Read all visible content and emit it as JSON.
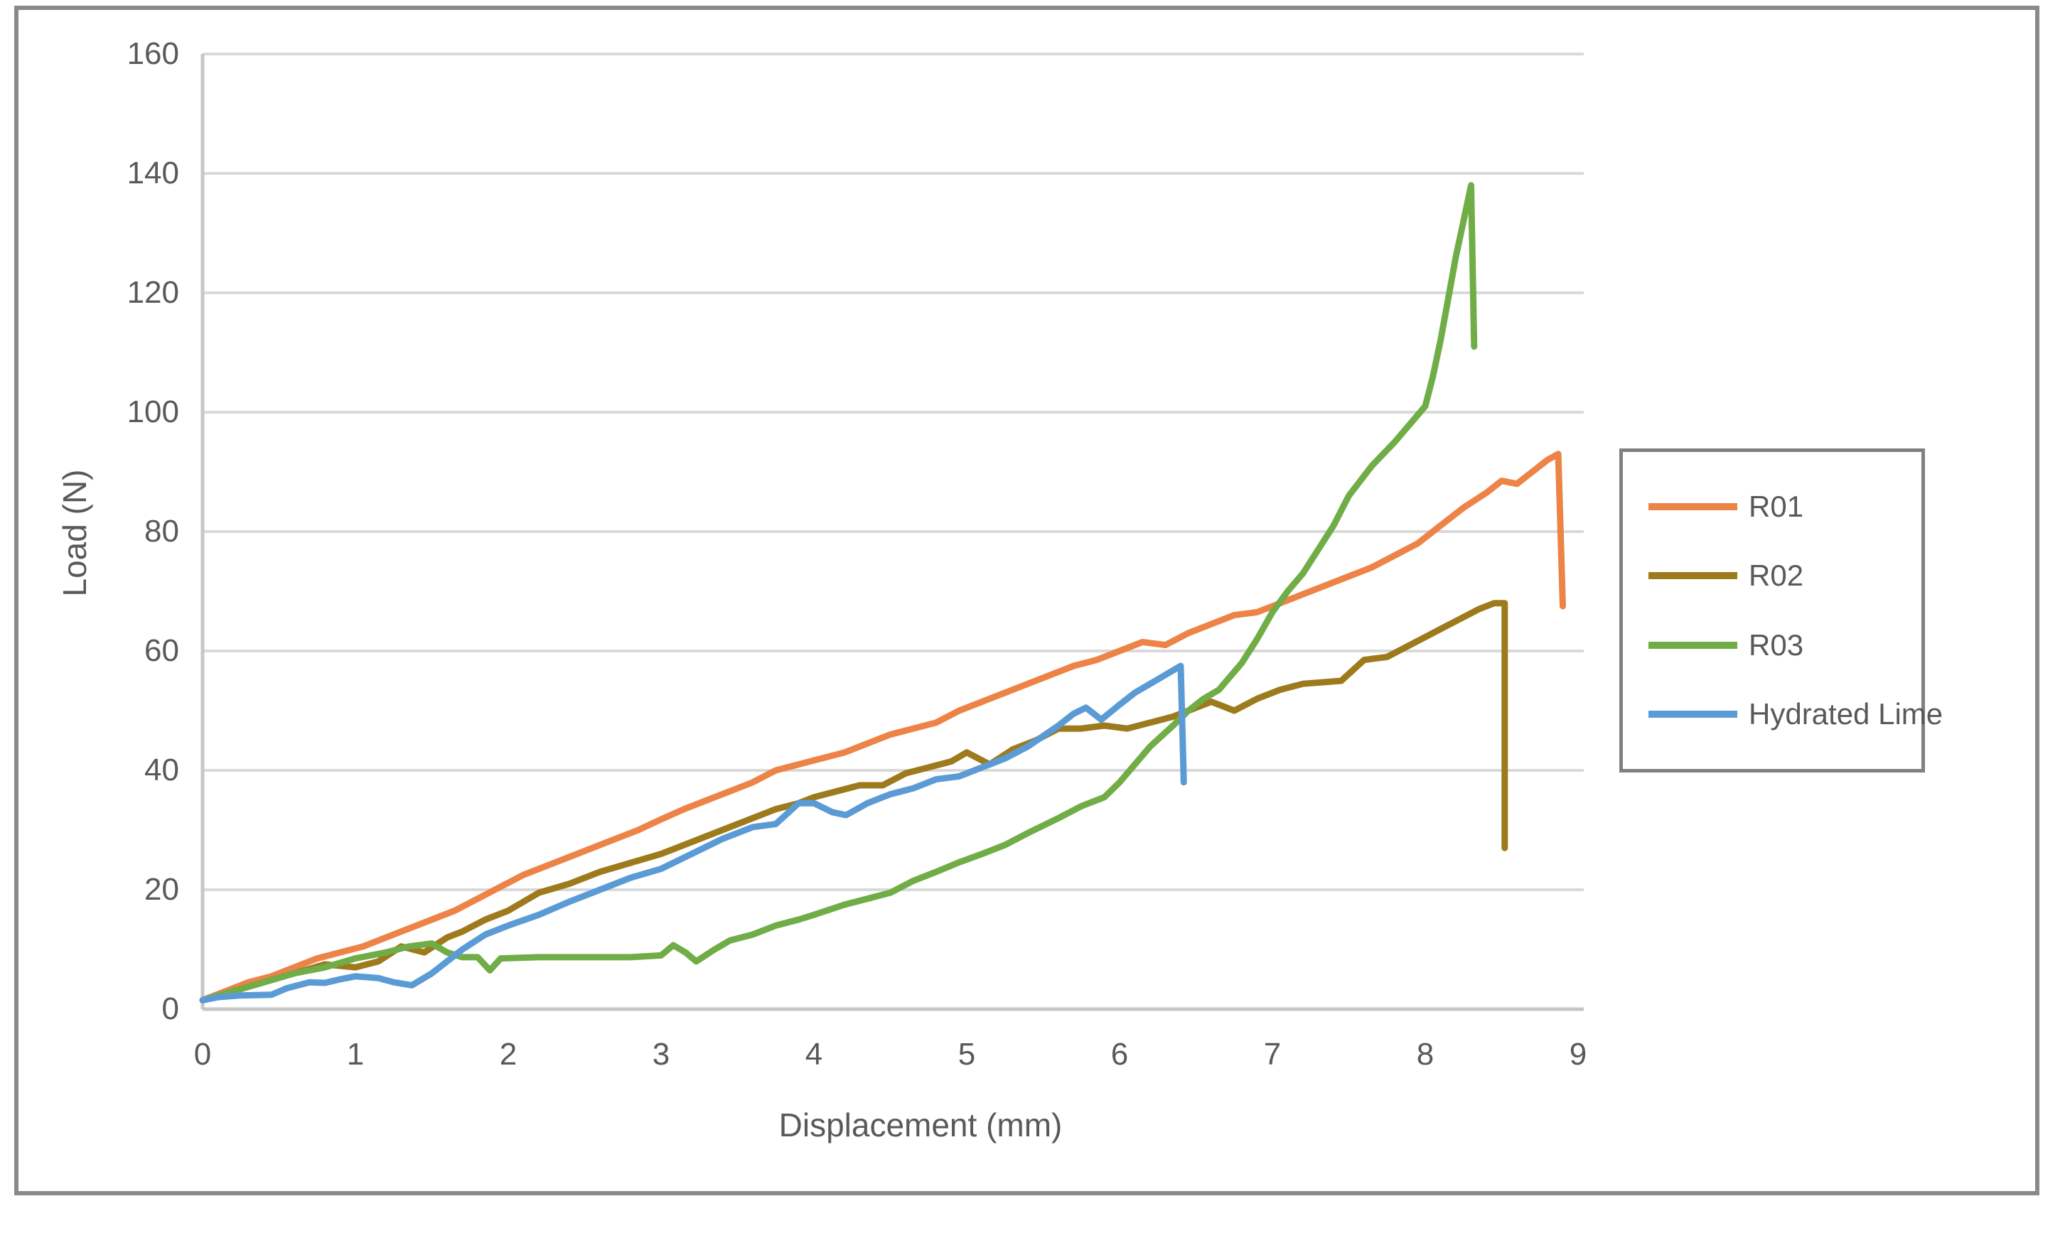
{
  "figure": {
    "border_color": "#8a8a8a",
    "background": "#ffffff",
    "text_color": "#595959",
    "gridline_color": "#d9d9d9",
    "axisline_color": "#c6c6c6"
  },
  "chart_data": {
    "type": "line",
    "title": "",
    "xlabel": "Displacement (mm)",
    "ylabel": "Load (N)",
    "xlim": [
      0,
      9
    ],
    "ylim": [
      0,
      160
    ],
    "xticks": [
      "0",
      "1",
      "2",
      "3",
      "4",
      "5",
      "6",
      "7",
      "8",
      "9"
    ],
    "yticks": [
      "0",
      "20",
      "40",
      "60",
      "80",
      "100",
      "120",
      "140",
      "160"
    ],
    "grid": "horizontal",
    "legend_position": "right-outside",
    "legend_border_color": "#808080",
    "series": [
      {
        "name": "R01",
        "color": "#ED8347",
        "x": [
          0,
          0.15,
          0.3,
          0.45,
          0.6,
          0.75,
          0.9,
          1.05,
          1.2,
          1.35,
          1.5,
          1.65,
          1.8,
          1.95,
          2.1,
          2.25,
          2.4,
          2.55,
          2.7,
          2.85,
          3.0,
          3.15,
          3.3,
          3.45,
          3.6,
          3.75,
          3.9,
          4.05,
          4.2,
          4.35,
          4.5,
          4.65,
          4.8,
          4.95,
          5.1,
          5.25,
          5.4,
          5.55,
          5.7,
          5.85,
          6.0,
          6.15,
          6.3,
          6.45,
          6.6,
          6.75,
          6.9,
          7.05,
          7.2,
          7.35,
          7.5,
          7.65,
          7.8,
          7.95,
          8.1,
          8.25,
          8.4,
          8.5,
          8.6,
          8.7,
          8.8,
          8.87,
          8.9
        ],
        "y": [
          1.5,
          3,
          4.5,
          5.5,
          7,
          8.5,
          9.5,
          10.5,
          12,
          13.5,
          15,
          16.5,
          18.5,
          20.5,
          22.5,
          24,
          25.5,
          27,
          28.5,
          30,
          31.8,
          33.5,
          35,
          36.5,
          38,
          40,
          41,
          42,
          43,
          44.5,
          46,
          47,
          48,
          50,
          51.5,
          53,
          54.5,
          56,
          57.5,
          58.5,
          60,
          61.5,
          61,
          63,
          64.5,
          66,
          66.5,
          68,
          69.5,
          71,
          72.5,
          74,
          76,
          78,
          81,
          84,
          86.5,
          88.5,
          88,
          90,
          92,
          93,
          67.5
        ]
      },
      {
        "name": "R02",
        "color": "#9D7A1C",
        "x": [
          0,
          0.2,
          0.4,
          0.6,
          0.8,
          1.0,
          1.15,
          1.3,
          1.45,
          1.6,
          1.7,
          1.85,
          2.0,
          2.2,
          2.4,
          2.6,
          2.8,
          3.0,
          3.2,
          3.4,
          3.6,
          3.75,
          3.9,
          4.0,
          4.15,
          4.3,
          4.45,
          4.6,
          4.75,
          4.9,
          5.0,
          5.15,
          5.3,
          5.45,
          5.6,
          5.75,
          5.9,
          6.05,
          6.2,
          6.35,
          6.45,
          6.6,
          6.75,
          6.9,
          7.05,
          7.2,
          7.45,
          7.6,
          7.75,
          7.9,
          8.05,
          8.2,
          8.35,
          8.45,
          8.52,
          8.52
        ],
        "y": [
          1.5,
          3,
          4.5,
          6,
          7.5,
          7,
          8,
          10.5,
          9.5,
          12,
          13,
          15,
          16.5,
          19.5,
          21,
          23,
          24.5,
          26,
          28,
          30,
          32,
          33.5,
          34.5,
          35.5,
          36.5,
          37.5,
          37.5,
          39.5,
          40.5,
          41.5,
          43,
          41,
          43.5,
          45,
          47,
          47,
          47.5,
          47,
          48,
          49,
          50,
          51.5,
          50,
          52,
          53.5,
          54.5,
          55,
          58.5,
          59,
          61,
          63,
          65,
          67,
          68,
          68,
          27
        ]
      },
      {
        "name": "R03",
        "color": "#70AD47",
        "x": [
          0,
          0.2,
          0.4,
          0.6,
          0.8,
          1.0,
          1.2,
          1.35,
          1.5,
          1.6,
          1.7,
          1.8,
          1.88,
          1.95,
          2.2,
          2.5,
          2.8,
          3.0,
          3.08,
          3.16,
          3.23,
          3.35,
          3.45,
          3.6,
          3.75,
          3.9,
          4.0,
          4.2,
          4.35,
          4.5,
          4.65,
          4.8,
          4.95,
          5.1,
          5.25,
          5.4,
          5.6,
          5.75,
          5.9,
          6.0,
          6.1,
          6.2,
          6.35,
          6.45,
          6.55,
          6.65,
          6.8,
          6.9,
          7.0,
          7.1,
          7.2,
          7.3,
          7.4,
          7.5,
          7.65,
          7.8,
          7.9,
          8.0,
          8.05,
          8.1,
          8.15,
          8.2,
          8.25,
          8.3,
          8.32
        ],
        "y": [
          1.5,
          3,
          4.5,
          6,
          7,
          8.5,
          9.5,
          10.5,
          11,
          9.5,
          8.7,
          8.7,
          6.5,
          8.5,
          8.7,
          8.7,
          8.7,
          9,
          10.7,
          9.5,
          8,
          10,
          11.5,
          12.5,
          14,
          15,
          15.8,
          17.5,
          18.5,
          19.5,
          21.5,
          23,
          24.6,
          26,
          27.5,
          29.5,
          32,
          34,
          35.5,
          38,
          41,
          44,
          47.5,
          50,
          52,
          53.5,
          58,
          62,
          66.5,
          70,
          73,
          77,
          81,
          86,
          91,
          95,
          98,
          101,
          106,
          112,
          119,
          126,
          132,
          138,
          111
        ]
      },
      {
        "name": "Hydrated Lime",
        "color": "#5B9BD5",
        "x": [
          0,
          0.1,
          0.25,
          0.45,
          0.55,
          0.7,
          0.8,
          0.9,
          1.0,
          1.15,
          1.25,
          1.37,
          1.5,
          1.7,
          1.85,
          2.0,
          2.2,
          2.4,
          2.6,
          2.8,
          3.0,
          3.2,
          3.4,
          3.6,
          3.75,
          3.9,
          4.0,
          4.12,
          4.21,
          4.35,
          4.5,
          4.65,
          4.8,
          4.95,
          5.1,
          5.25,
          5.4,
          5.6,
          5.7,
          5.78,
          5.88,
          6.0,
          6.1,
          6.2,
          6.3,
          6.4,
          6.42
        ],
        "y": [
          1.5,
          2,
          2.3,
          2.4,
          3.5,
          4.5,
          4.4,
          5,
          5.5,
          5.2,
          4.5,
          4,
          6,
          10,
          12.5,
          14,
          15.8,
          18,
          20,
          22,
          23.5,
          26,
          28.5,
          30.5,
          31,
          34.5,
          34.5,
          33,
          32.5,
          34.5,
          36,
          37,
          38.5,
          39,
          40.5,
          42,
          44,
          47.5,
          49.5,
          50.5,
          48.5,
          51,
          53,
          54.5,
          56,
          57.5,
          38
        ]
      }
    ]
  }
}
